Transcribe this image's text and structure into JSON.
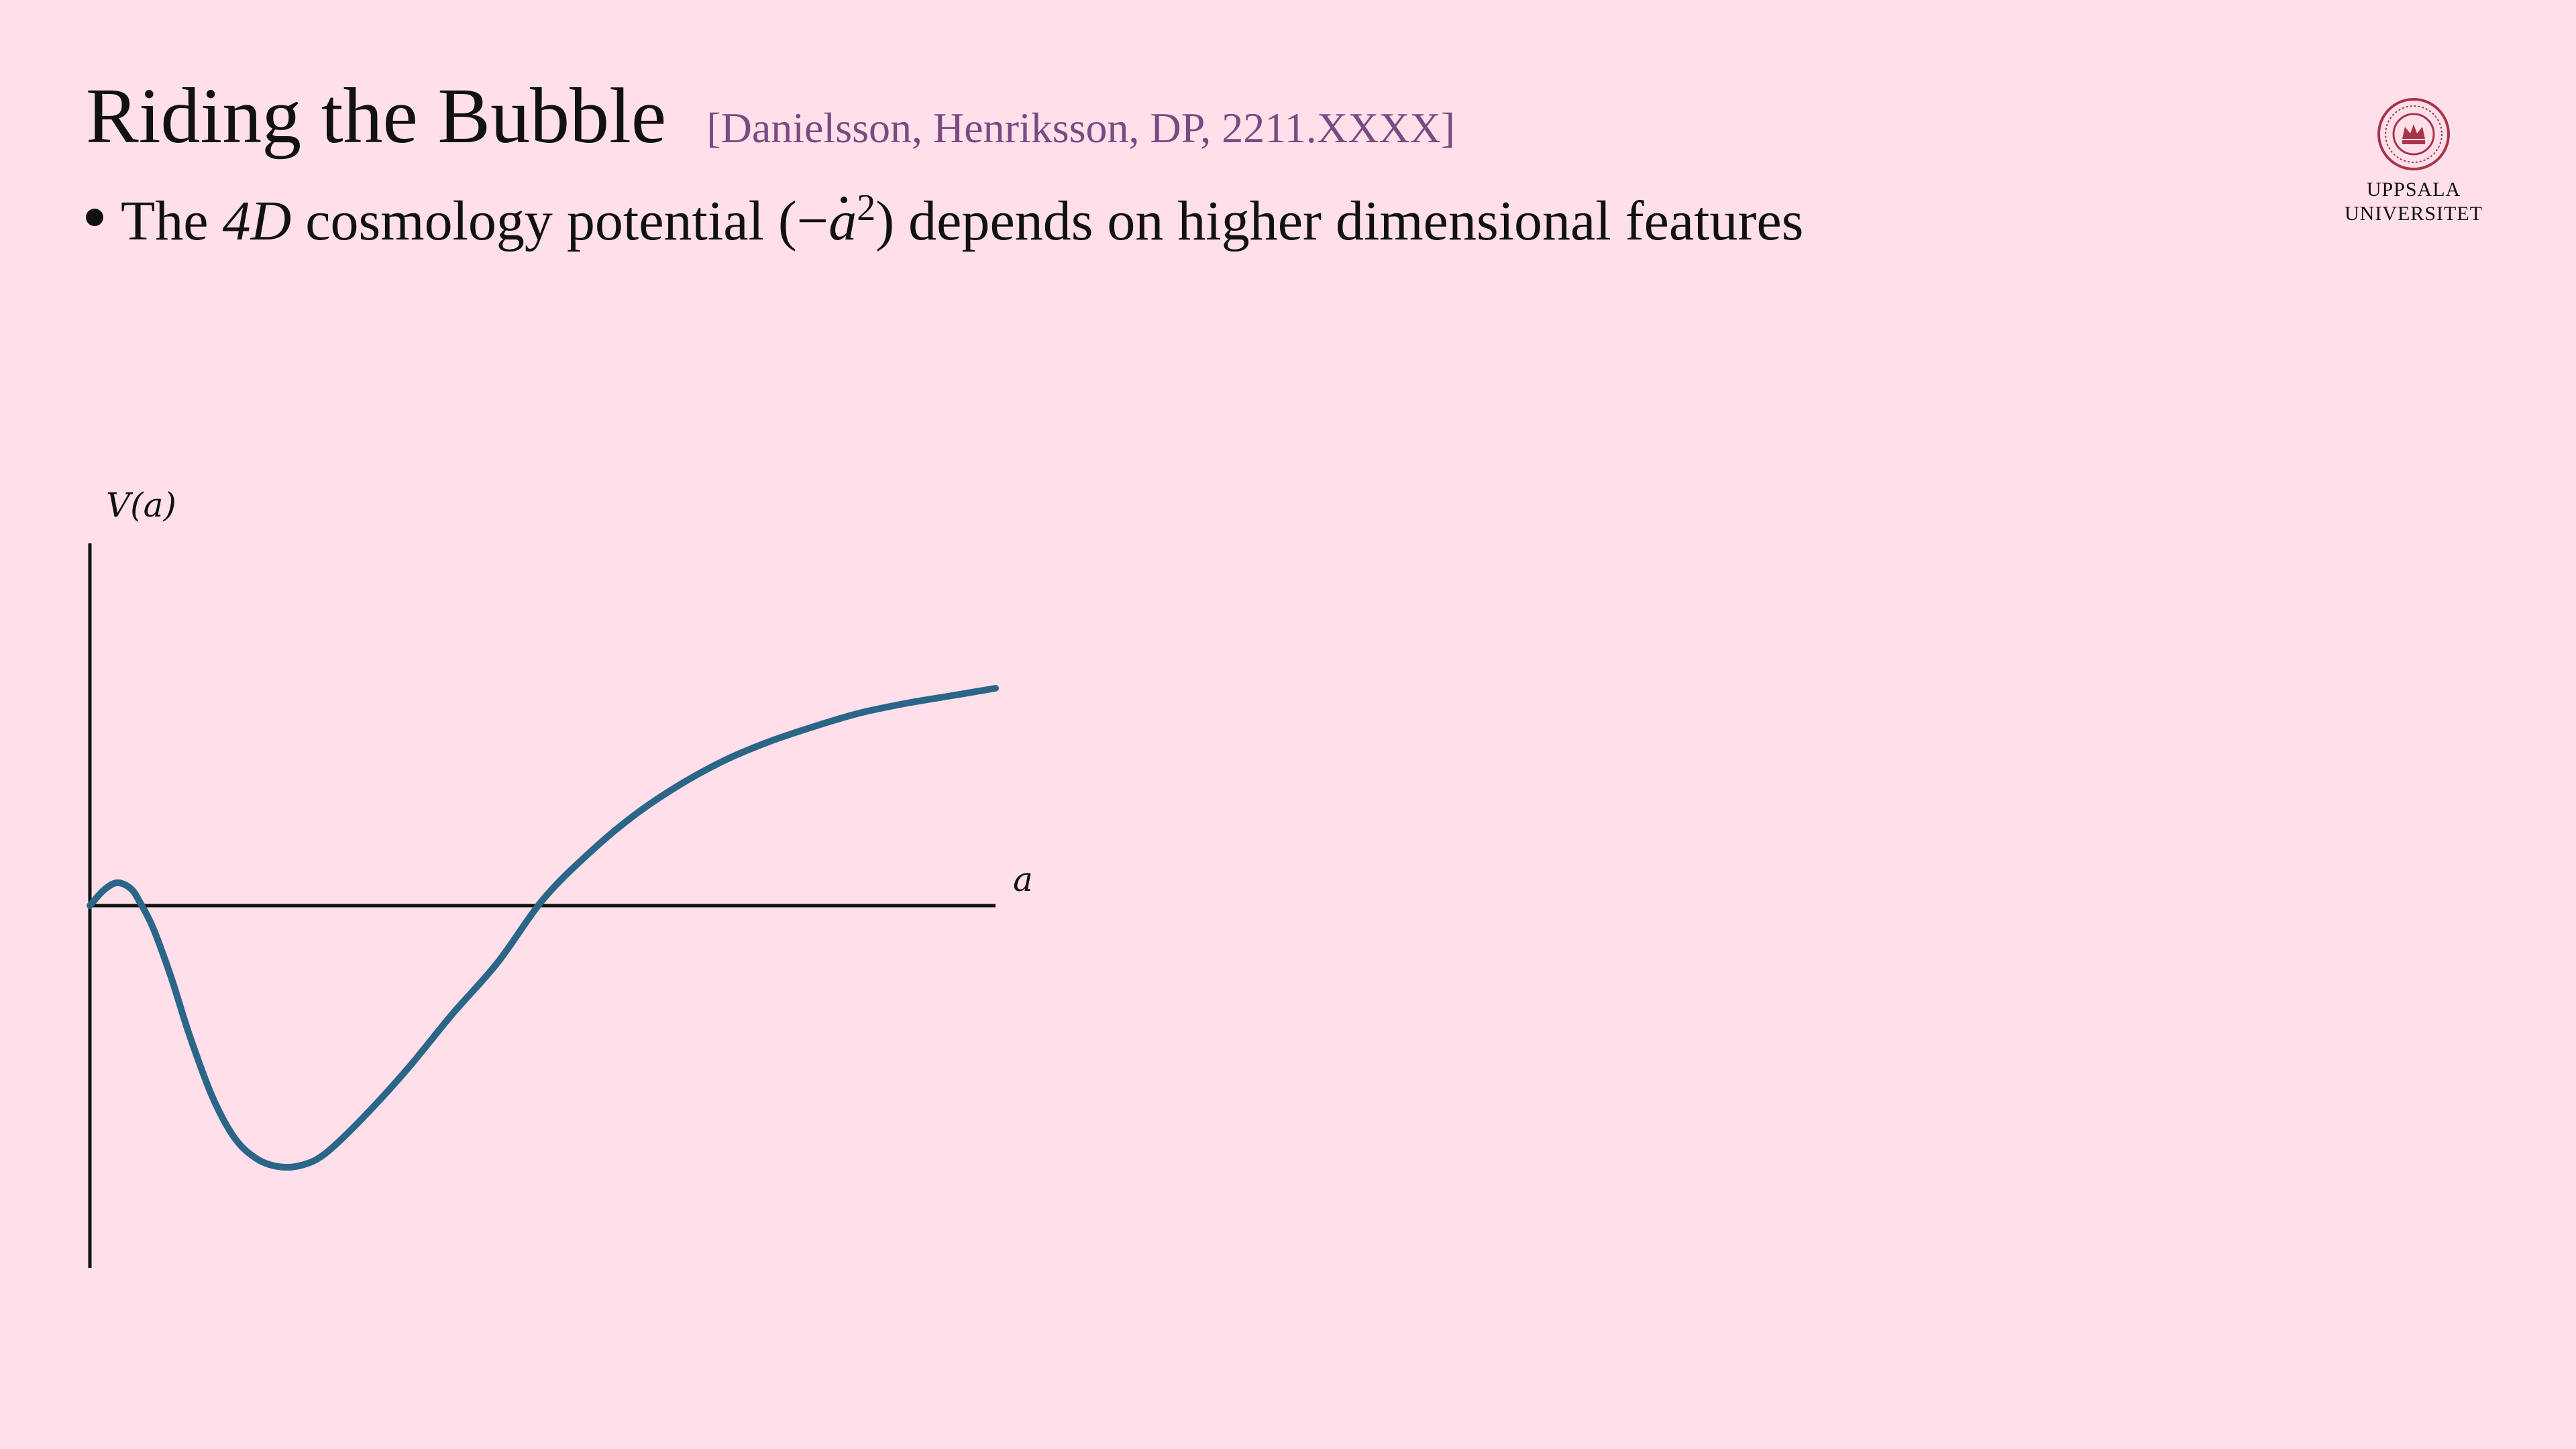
{
  "slide": {
    "title": "Riding the Bubble",
    "citation": "[Danielsson, Henriksson, DP, 2211.XXXX]"
  },
  "bullet": {
    "pre": "The ",
    "math_4d": "4D",
    "mid": " cosmology potential (−",
    "math_a": "a",
    "exponent": "2",
    "post": ") depends on higher dimensional features"
  },
  "logo": {
    "line1": "UPPSALA",
    "line2": "UNIVERSITET",
    "color": "#a8344a"
  },
  "chart_data": {
    "type": "line",
    "xlabel": "a",
    "ylabel": "V(a)",
    "xlim": [
      0,
      10
    ],
    "ylim": [
      -1.9,
      1.9
    ],
    "grid": false,
    "series": [
      {
        "color": "#2b6688",
        "x": [
          0,
          0.15,
          0.3,
          0.45,
          0.55,
          0.7,
          0.9,
          1.1,
          1.35,
          1.6,
          1.85,
          2.1,
          2.35,
          2.6,
          3.0,
          3.5,
          4.0,
          4.5,
          5.0,
          5.5,
          6.0,
          6.5,
          7.0,
          7.5,
          8.0,
          8.5,
          9.0,
          9.5,
          10.0
        ],
        "y": [
          0.0,
          0.08,
          0.12,
          0.09,
          0.02,
          -0.12,
          -0.38,
          -0.68,
          -1.0,
          -1.22,
          -1.33,
          -1.37,
          -1.36,
          -1.3,
          -1.12,
          -0.86,
          -0.57,
          -0.3,
          0.03,
          0.27,
          0.47,
          0.63,
          0.76,
          0.86,
          0.94,
          1.01,
          1.06,
          1.1,
          1.14
        ]
      }
    ]
  }
}
